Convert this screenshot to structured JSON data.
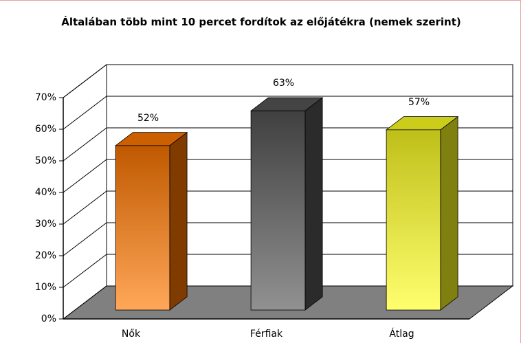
{
  "chart_data": {
    "type": "bar3d",
    "title": "Általában több mint 10 percet fordítok az előjátékra (nemek szerint)",
    "categories": [
      "Nők",
      "Férfiak",
      "Átlag"
    ],
    "values": [
      52,
      63,
      57
    ],
    "value_labels": [
      "52%",
      "63%",
      "57%"
    ],
    "colors": [
      "#ff7700",
      "#555555",
      "#ffff22"
    ],
    "ylim": [
      0,
      70
    ],
    "yticks": [
      {
        "value": 0,
        "label": "0%"
      },
      {
        "value": 10,
        "label": "10%"
      },
      {
        "value": 20,
        "label": "20%"
      },
      {
        "value": 30,
        "label": "30%"
      },
      {
        "value": 40,
        "label": "40%"
      },
      {
        "value": 50,
        "label": "50%"
      },
      {
        "value": 60,
        "label": "60%"
      },
      {
        "value": 70,
        "label": "70%"
      }
    ],
    "grid": true
  }
}
